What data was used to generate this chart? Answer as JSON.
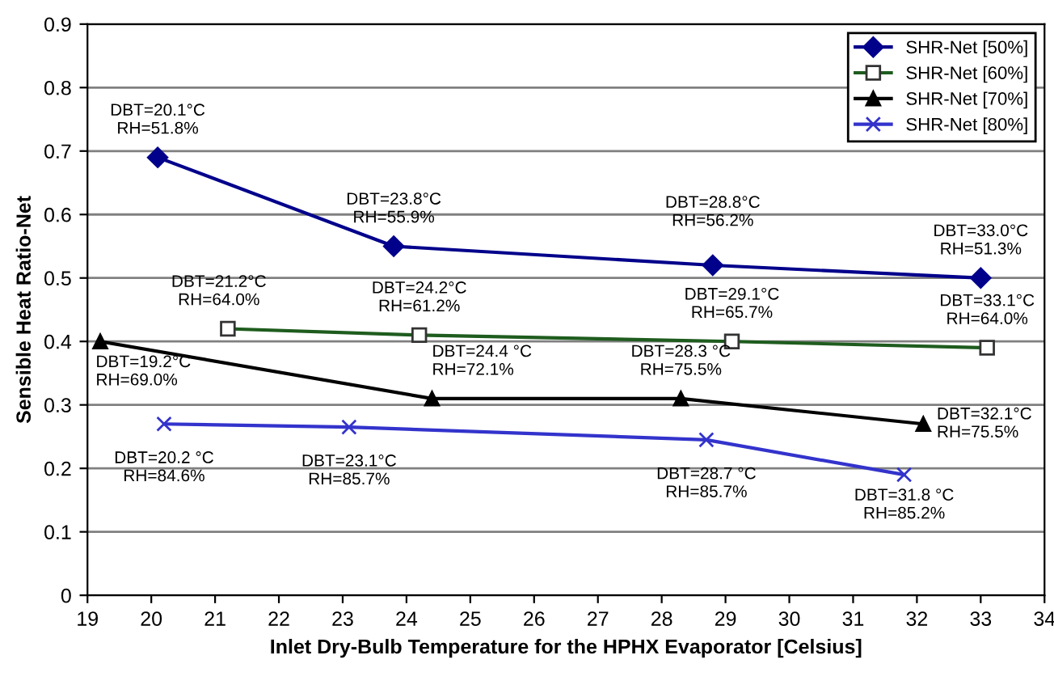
{
  "chart_data": {
    "type": "line",
    "xlabel": "Inlet Dry-Bulb Temperature for the HPHX Evaporator [Celsius]",
    "ylabel": "Sensible Heat Ratio-Net",
    "xlim": [
      19,
      34
    ],
    "xticks": [
      19,
      20,
      21,
      22,
      23,
      24,
      25,
      26,
      27,
      28,
      29,
      30,
      31,
      32,
      33,
      34
    ],
    "ylim": [
      0,
      0.9
    ],
    "yticks": [
      0,
      0.1,
      0.2,
      0.3,
      0.4,
      0.5,
      0.6,
      0.7,
      0.8,
      0.9
    ],
    "grid": "y",
    "legend": "top right",
    "line_style": "solid",
    "series": [
      {
        "name": "SHR-Net [50%]",
        "color": "#00008b",
        "marker": "diamond",
        "x": [
          20.1,
          23.8,
          28.8,
          33.0
        ],
        "values": [
          0.69,
          0.55,
          0.52,
          0.5
        ]
      },
      {
        "name": "SHR-Net [60%]",
        "color": "#1e5c1e",
        "marker": "square",
        "x": [
          21.2,
          24.2,
          29.1,
          33.1
        ],
        "values": [
          0.42,
          0.41,
          0.4,
          0.39
        ]
      },
      {
        "name": "SHR-Net [70%]",
        "color": "#000000",
        "marker": "triangle",
        "x": [
          19.2,
          24.4,
          28.3,
          32.1
        ],
        "values": [
          0.4,
          0.31,
          0.31,
          0.27
        ]
      },
      {
        "name": "SHR-Net [80%]",
        "color": "#3333cc",
        "marker": "cross",
        "x": [
          20.2,
          23.1,
          28.7,
          31.8
        ],
        "values": [
          0.27,
          0.265,
          0.245,
          0.19
        ]
      }
    ],
    "annotations": [
      {
        "text": "DBT=20.1°C\nRH=51.8%",
        "x": 20.1,
        "y": 0.69
      },
      {
        "text": "DBT=23.8°C\nRH=55.9%",
        "x": 23.8,
        "y": 0.55
      },
      {
        "text": "DBT=28.8°C\nRH=56.2%",
        "x": 28.8,
        "y": 0.52
      },
      {
        "text": "DBT=33.0°C\nRH=51.3%",
        "x": 33.0,
        "y": 0.5
      },
      {
        "text": "DBT=21.2°C\nRH=64.0%",
        "x": 21.2,
        "y": 0.42
      },
      {
        "text": "DBT=24.2°C\nRH=61.2%",
        "x": 24.2,
        "y": 0.41
      },
      {
        "text": "DBT=29.1°C\nRH=65.7%",
        "x": 29.1,
        "y": 0.4
      },
      {
        "text": "DBT=33.1°C\nRH=64.0%",
        "x": 33.1,
        "y": 0.39
      },
      {
        "text": "DBT=19.2°C\nRH=69.0%",
        "x": 19.2,
        "y": 0.4
      },
      {
        "text": "DBT=24.4 °C\nRH=72.1%",
        "x": 24.4,
        "y": 0.31
      },
      {
        "text": "DBT=28.3 °C\nRH=75.5%",
        "x": 28.3,
        "y": 0.31
      },
      {
        "text": "DBT=32.1°C\nRH=75.5%",
        "x": 32.1,
        "y": 0.27
      },
      {
        "text": "DBT=20.2 °C\nRH=84.6%",
        "x": 20.2,
        "y": 0.27
      },
      {
        "text": "DBT=23.1°C\nRH=85.7%",
        "x": 23.1,
        "y": 0.265
      },
      {
        "text": "DBT=28.7 °C\nRH=85.7%",
        "x": 28.7,
        "y": 0.245
      },
      {
        "text": "DBT=31.8 °C\nRH=85.2%",
        "x": 31.8,
        "y": 0.19
      }
    ]
  }
}
